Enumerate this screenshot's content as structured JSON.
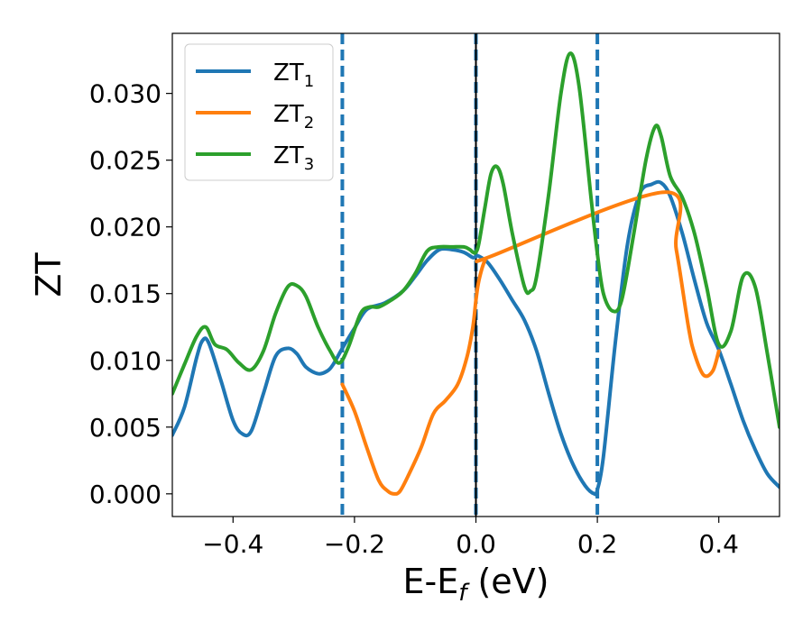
{
  "chart_data": {
    "type": "line",
    "xlabel": "E-E",
    "xlabel_sub": "f",
    "xlabel_unit": " (eV)",
    "ylabel": "ZT",
    "xlim": [
      -0.5,
      0.5
    ],
    "ylim": [
      -0.0017,
      0.0345
    ],
    "xticks": [
      -0.4,
      -0.2,
      0.0,
      0.2,
      0.4
    ],
    "xtick_labels": [
      "−0.4",
      "−0.2",
      "0.0",
      "0.2",
      "0.4"
    ],
    "yticks": [
      0.0,
      0.005,
      0.01,
      0.015,
      0.02,
      0.025,
      0.03
    ],
    "ytick_labels": [
      "0.000",
      "0.005",
      "0.010",
      "0.015",
      "0.020",
      "0.025",
      "0.030"
    ],
    "legend_position": "upper-left",
    "vlines": [
      {
        "x": -0.22,
        "style": "dashed",
        "color": "#1f77b4"
      },
      {
        "x": 0.2,
        "style": "dashed",
        "color": "#1f77b4"
      },
      {
        "x": 0.0,
        "style": "dashed",
        "color": "#1f77b4"
      },
      {
        "x": 0.0,
        "style": "solid",
        "color": "#000000"
      }
    ],
    "series": [
      {
        "name": "ZT",
        "name_sub": "1",
        "color": "#1f77b4",
        "x": [
          -0.5,
          -0.48,
          -0.46,
          -0.45,
          -0.44,
          -0.42,
          -0.4,
          -0.385,
          -0.37,
          -0.35,
          -0.33,
          -0.31,
          -0.295,
          -0.28,
          -0.26,
          -0.245,
          -0.235,
          -0.22,
          -0.2,
          -0.18,
          -0.15,
          -0.12,
          -0.1,
          -0.08,
          -0.06,
          -0.04,
          -0.02,
          -0.005,
          0.0,
          0.005,
          0.02,
          0.04,
          0.06,
          0.08,
          0.1,
          0.12,
          0.14,
          0.16,
          0.18,
          0.195,
          0.2,
          0.21,
          0.23,
          0.25,
          0.27,
          0.29,
          0.305,
          0.32,
          0.34,
          0.36,
          0.38,
          0.4,
          0.42,
          0.44,
          0.46,
          0.48,
          0.5
        ],
        "y": [
          0.0044,
          0.0065,
          0.0102,
          0.0115,
          0.0113,
          0.0085,
          0.0055,
          0.0045,
          0.0047,
          0.0075,
          0.0103,
          0.0109,
          0.0105,
          0.0095,
          0.009,
          0.0092,
          0.0097,
          0.0109,
          0.0124,
          0.0138,
          0.0143,
          0.0152,
          0.0163,
          0.0175,
          0.0183,
          0.0183,
          0.0181,
          0.0177,
          0.0178,
          0.0178,
          0.0173,
          0.016,
          0.0145,
          0.013,
          0.0107,
          0.0075,
          0.0045,
          0.0022,
          0.0006,
          0.0,
          0.0003,
          0.0028,
          0.0115,
          0.0188,
          0.0225,
          0.0232,
          0.0233,
          0.0223,
          0.0195,
          0.016,
          0.0128,
          0.0108,
          0.0082,
          0.0055,
          0.0033,
          0.0015,
          0.0005
        ]
      },
      {
        "name": "ZT",
        "name_sub": "2",
        "color": "#ff7f0e",
        "x": [
          -0.22,
          -0.2,
          -0.18,
          -0.16,
          -0.145,
          -0.135,
          -0.125,
          -0.11,
          -0.09,
          -0.07,
          -0.05,
          -0.03,
          -0.015,
          -0.005,
          0.0,
          0.005,
          0.015,
          0.025,
          0.31,
          0.33,
          0.35,
          0.36,
          0.375,
          0.39,
          0.4
        ],
        "y": [
          0.0082,
          0.0062,
          0.0035,
          0.001,
          0.0002,
          0.0,
          0.0002,
          0.0015,
          0.0035,
          0.006,
          0.007,
          0.0082,
          0.0102,
          0.0125,
          0.0145,
          0.016,
          0.0175,
          0.0178,
          0.0226,
          0.0183,
          0.0125,
          0.0105,
          0.0089,
          0.0092,
          0.0107
        ]
      },
      {
        "name": "ZT",
        "name_sub": "3",
        "color": "#2ca02c",
        "x": [
          -0.5,
          -0.48,
          -0.46,
          -0.445,
          -0.43,
          -0.41,
          -0.39,
          -0.37,
          -0.35,
          -0.33,
          -0.31,
          -0.295,
          -0.28,
          -0.26,
          -0.24,
          -0.225,
          -0.21,
          -0.19,
          -0.175,
          -0.16,
          -0.14,
          -0.12,
          -0.1,
          -0.08,
          -0.06,
          -0.04,
          -0.02,
          -0.01,
          -0.005,
          0.0,
          0.005,
          0.015,
          0.025,
          0.035,
          0.045,
          0.06,
          0.08,
          0.09,
          0.1,
          0.12,
          0.14,
          0.155,
          0.17,
          0.19,
          0.2,
          0.21,
          0.225,
          0.24,
          0.26,
          0.28,
          0.295,
          0.305,
          0.32,
          0.34,
          0.36,
          0.38,
          0.4,
          0.42,
          0.44,
          0.46,
          0.48,
          0.5
        ],
        "y": [
          0.0075,
          0.0097,
          0.0118,
          0.0125,
          0.0112,
          0.0108,
          0.0098,
          0.0093,
          0.0107,
          0.0135,
          0.0155,
          0.0156,
          0.0148,
          0.0125,
          0.0107,
          0.0098,
          0.011,
          0.0135,
          0.014,
          0.014,
          0.0145,
          0.0152,
          0.0165,
          0.0182,
          0.0185,
          0.0185,
          0.0185,
          0.0183,
          0.0181,
          0.0181,
          0.0188,
          0.0215,
          0.024,
          0.0245,
          0.0232,
          0.0195,
          0.0155,
          0.0152,
          0.0163,
          0.0225,
          0.03,
          0.033,
          0.0305,
          0.022,
          0.018,
          0.015,
          0.0137,
          0.0145,
          0.0195,
          0.025,
          0.0275,
          0.0268,
          0.0238,
          0.0222,
          0.0195,
          0.0155,
          0.0112,
          0.0122,
          0.0163,
          0.0155,
          0.0105,
          0.005
        ]
      }
    ]
  }
}
